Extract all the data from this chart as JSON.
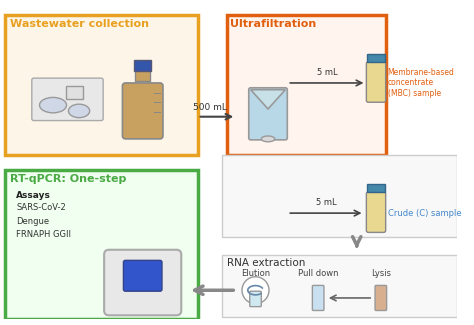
{
  "title": "",
  "bg_color": "#ffffff",
  "wastewater_box_color": "#E8A020",
  "ultrafiltration_box_color": "#E06010",
  "rna_box_color": "#cccccc",
  "rtpcr_box_color": "#4aaa44",
  "wastewater_label": "Wastewater collection",
  "ultrafiltration_label": "Ultrafiltration",
  "rna_label": "RNA extraction",
  "rtpcr_label": "RT-qPCR: One-step",
  "mbc_label": "Membrane-based\nconcentrate\n(MBC) sample",
  "crude_label": "Crude (C) sample",
  "assays_bold": "Assays",
  "assays_list": "SARS-CoV-2\nDengue\nFRNAPH GGII",
  "label_500mL": "500 mL",
  "label_5mL_top": "5 mL",
  "label_5mL_bottom": "5 mL",
  "elution_label": "Elution",
  "pulldown_label": "Pull down",
  "lysis_label": "Lysis",
  "orange_label_color": "#E06010",
  "green_label_color": "#4aaa44",
  "yellow_box_color": "#E8A020",
  "gray_text": "#555555",
  "dark_text": "#222222"
}
